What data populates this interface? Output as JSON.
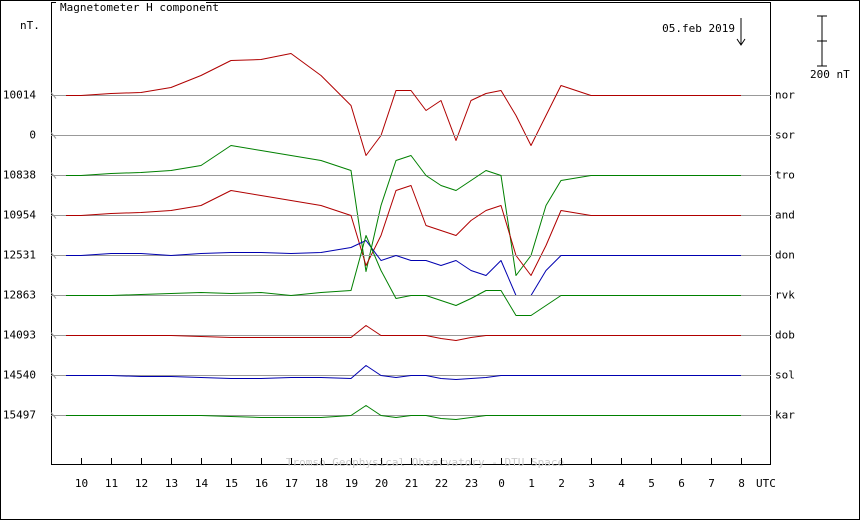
{
  "chart_data": {
    "type": "line",
    "title": "Magnetometer H component",
    "y_unit": "nT.",
    "date": "05.feb 2019",
    "x_label": "UTC",
    "credit": "Tromso Geophysical Observatory - DTU Space",
    "scale_bar": {
      "value": 200,
      "label": "200 nT"
    },
    "xlim": [
      9,
      33
    ],
    "xticks": [
      10,
      11,
      12,
      13,
      14,
      15,
      16,
      17,
      18,
      19,
      20,
      21,
      22,
      23,
      {
        "value": 24,
        "label": "0"
      },
      {
        "value": 25,
        "label": "1"
      },
      {
        "value": 26,
        "label": "2"
      },
      {
        "value": 27,
        "label": "3"
      },
      {
        "value": 28,
        "label": "4"
      },
      {
        "value": 29,
        "label": "5"
      },
      {
        "value": 30,
        "label": "6"
      },
      {
        "value": 31,
        "label": "7"
      },
      {
        "value": 32,
        "label": "8"
      }
    ],
    "x": [
      9.5,
      10,
      11,
      12,
      13,
      14,
      15,
      16,
      17,
      18,
      19,
      19.5,
      20,
      20.5,
      21,
      21.5,
      22,
      22.5,
      23,
      23.5,
      24,
      24.5,
      25,
      25.5,
      26,
      27,
      28,
      29,
      30,
      31,
      32
    ],
    "series": [
      {
        "name": "nor",
        "baseline": 10014,
        "color": "#b00000",
        "values": [
          10014,
          10014,
          10022,
          10026,
          10046,
          10094,
          10154,
          10158,
          10182,
          10094,
          9974,
          9774,
          9854,
          10034,
          10034,
          9954,
          9994,
          9834,
          9994,
          10022,
          10034,
          9934,
          9814,
          9934,
          10054,
          10014,
          10014,
          10014,
          10014,
          10014,
          10014
        ]
      },
      {
        "name": "sor",
        "baseline": 0,
        "color": "#b00000",
        "values": [
          null,
          null,
          null,
          null,
          null,
          null,
          null,
          null,
          null,
          null,
          null,
          null,
          null,
          null,
          null,
          null,
          null,
          null,
          null,
          null,
          null,
          null,
          null,
          null,
          null,
          null,
          null,
          null,
          null,
          null,
          null
        ]
      },
      {
        "name": "tro",
        "baseline": 10838,
        "color": "#008000",
        "values": [
          10838,
          10838,
          10846,
          10850,
          10858,
          10878,
          10958,
          10938,
          10918,
          10898,
          10858,
          10454,
          10718,
          10898,
          10918,
          10838,
          10798,
          10778,
          10818,
          10858,
          10838,
          10438,
          10518,
          10718,
          10818,
          10838,
          10838,
          10838,
          10838,
          10838,
          10838
        ]
      },
      {
        "name": "and",
        "baseline": 10954,
        "color": "#b00000",
        "values": [
          10954,
          10954,
          10962,
          10966,
          10974,
          10994,
          11054,
          11034,
          11014,
          10994,
          10954,
          10754,
          10874,
          11054,
          11074,
          10914,
          10894,
          10874,
          10934,
          10974,
          10994,
          10794,
          10714,
          10834,
          10974,
          10954,
          10954,
          10954,
          10954,
          10954,
          10954
        ]
      },
      {
        "name": "don",
        "baseline": 12531,
        "color": "#0000b0",
        "values": [
          12531,
          12531,
          12539,
          12539,
          12531,
          12539,
          12543,
          12543,
          12539,
          12543,
          12563,
          12591,
          12511,
          12531,
          12511,
          12511,
          12491,
          12511,
          12471,
          12451,
          12511,
          12371,
          12371,
          12471,
          12531,
          12531,
          12531,
          12531,
          12531,
          12531,
          12531
        ]
      },
      {
        "name": "rvk",
        "baseline": 12863,
        "color": "#008000",
        "values": [
          12863,
          12863,
          12863,
          12867,
          12871,
          12875,
          12871,
          12875,
          12863,
          12875,
          12883,
          13103,
          12963,
          12851,
          12863,
          12863,
          12843,
          12823,
          12851,
          12883,
          12883,
          12783,
          12783,
          12823,
          12863,
          12863,
          12863,
          12863,
          12863,
          12863,
          12863
        ]
      },
      {
        "name": "dob",
        "baseline": 14093,
        "color": "#b00000",
        "values": [
          14093,
          14093,
          14093,
          14093,
          14093,
          14089,
          14085,
          14085,
          14085,
          14085,
          14085,
          14133,
          14093,
          14093,
          14093,
          14093,
          14081,
          14073,
          14085,
          14093,
          14093,
          14093,
          14093,
          14093,
          14093,
          14093,
          14093,
          14093,
          14093,
          14093,
          14093
        ]
      },
      {
        "name": "sol",
        "baseline": 14540,
        "color": "#0000b0",
        "values": [
          14540,
          14540,
          14540,
          14536,
          14536,
          14532,
          14528,
          14528,
          14532,
          14532,
          14528,
          14580,
          14540,
          14532,
          14540,
          14540,
          14528,
          14524,
          14528,
          14532,
          14540,
          14540,
          14540,
          14540,
          14540,
          14540,
          14540,
          14540,
          14540,
          14540,
          14540
        ]
      },
      {
        "name": "kar",
        "baseline": 15497,
        "color": "#008000",
        "values": [
          15497,
          15497,
          15497,
          15497,
          15497,
          15497,
          15493,
          15489,
          15489,
          15489,
          15497,
          15537,
          15497,
          15489,
          15497,
          15497,
          15485,
          15481,
          15489,
          15497,
          15497,
          15497,
          15497,
          15497,
          15497,
          15497,
          15497,
          15497,
          15497,
          15497,
          15497
        ]
      }
    ]
  }
}
